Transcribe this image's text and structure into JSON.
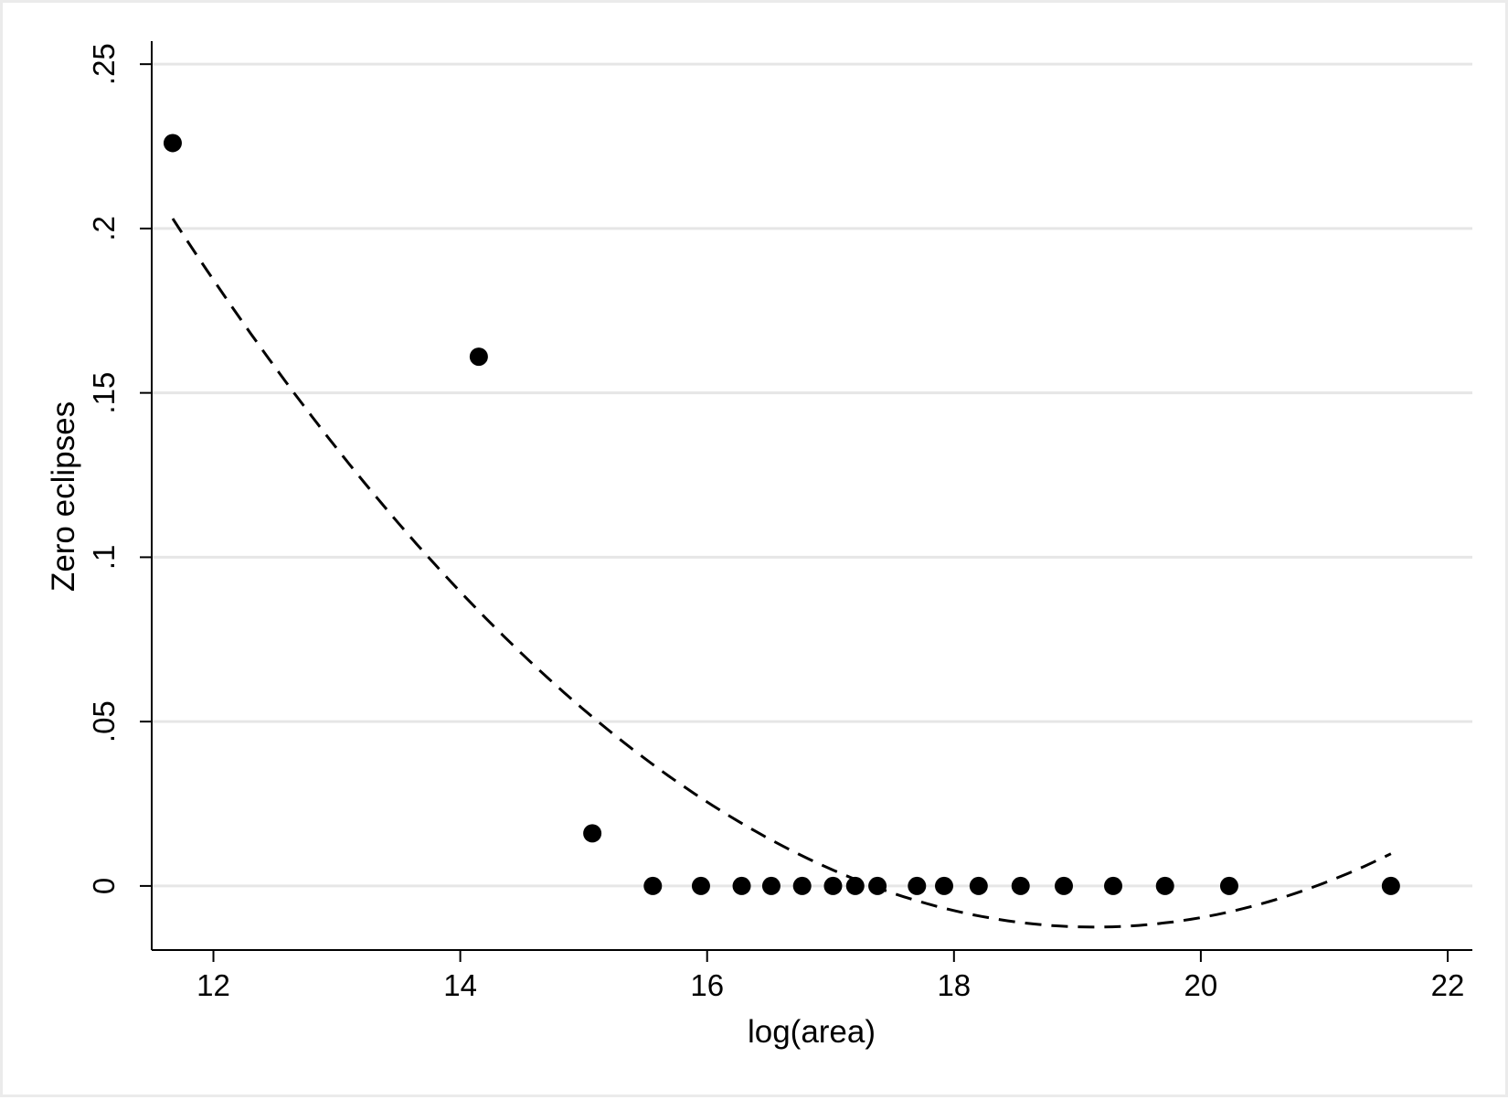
{
  "chart_data": {
    "type": "scatter",
    "title": "",
    "xlabel": "log(area)",
    "ylabel": "Zero eclipses",
    "xlim": [
      11.5,
      22.2
    ],
    "ylim": [
      -0.0195,
      0.257
    ],
    "x_ticks": [
      {
        "value": 12,
        "label": "12"
      },
      {
        "value": 14,
        "label": "14"
      },
      {
        "value": 16,
        "label": "16"
      },
      {
        "value": 18,
        "label": "18"
      },
      {
        "value": 20,
        "label": "20"
      },
      {
        "value": 22,
        "label": "22"
      }
    ],
    "y_ticks": [
      {
        "value": 0,
        "label": "0"
      },
      {
        "value": 0.05,
        "label": ".05"
      },
      {
        "value": 0.1,
        "label": ".1"
      },
      {
        "value": 0.15,
        "label": ".15"
      },
      {
        "value": 0.2,
        "label": ".2"
      },
      {
        "value": 0.25,
        "label": ".25"
      }
    ],
    "grid": "horizontal",
    "legend": "none",
    "colors": {
      "points": "#000000",
      "fit_line": "#000000",
      "grid": "#e6e6e6",
      "axis": "#000000"
    },
    "points": [
      {
        "x": 11.67,
        "y": 0.226
      },
      {
        "x": 14.15,
        "y": 0.161
      },
      {
        "x": 15.07,
        "y": 0.016
      },
      {
        "x": 15.56,
        "y": 0
      },
      {
        "x": 15.95,
        "y": 0
      },
      {
        "x": 16.28,
        "y": 0
      },
      {
        "x": 16.52,
        "y": 0
      },
      {
        "x": 16.77,
        "y": 0
      },
      {
        "x": 17.02,
        "y": 0
      },
      {
        "x": 17.2,
        "y": 0
      },
      {
        "x": 17.38,
        "y": 0
      },
      {
        "x": 17.7,
        "y": 0
      },
      {
        "x": 17.92,
        "y": 0
      },
      {
        "x": 18.2,
        "y": 0
      },
      {
        "x": 18.54,
        "y": 0
      },
      {
        "x": 18.89,
        "y": 0
      },
      {
        "x": 19.29,
        "y": 0
      },
      {
        "x": 19.71,
        "y": 0
      },
      {
        "x": 20.23,
        "y": 0
      },
      {
        "x": 21.54,
        "y": 0
      }
    ],
    "fit": {
      "style": "dashed",
      "kind": "quadratic",
      "x_range": [
        11.67,
        21.54
      ],
      "anchors": [
        {
          "x": 11.67,
          "y": 0.203
        },
        {
          "x": 19.1,
          "y": -0.0125
        },
        {
          "x": 21.54,
          "y": 0.0098
        }
      ]
    }
  }
}
